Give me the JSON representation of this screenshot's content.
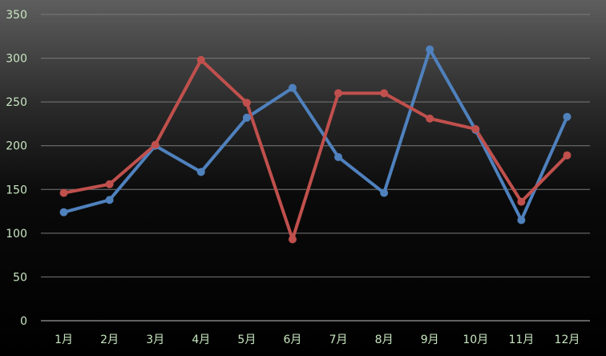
{
  "chart_data": {
    "type": "line",
    "categories": [
      "1月",
      "2月",
      "3月",
      "4月",
      "5月",
      "6月",
      "7月",
      "8月",
      "9月",
      "10月",
      "11月",
      "12月"
    ],
    "series": [
      {
        "values": [
          124,
          138,
          200,
          170,
          232,
          266,
          187,
          146,
          310,
          218,
          115,
          233
        ],
        "color": "#4f81bd"
      },
      {
        "values": [
          146,
          156,
          201,
          298,
          249,
          93,
          260,
          260,
          231,
          219,
          136,
          189
        ],
        "color": "#c0504d"
      }
    ],
    "yticks": [
      0,
      50,
      100,
      150,
      200,
      250,
      300,
      350
    ],
    "ylim": [
      0,
      350
    ],
    "grid": true,
    "legend": "none",
    "label_color": "#c8e6c0"
  }
}
